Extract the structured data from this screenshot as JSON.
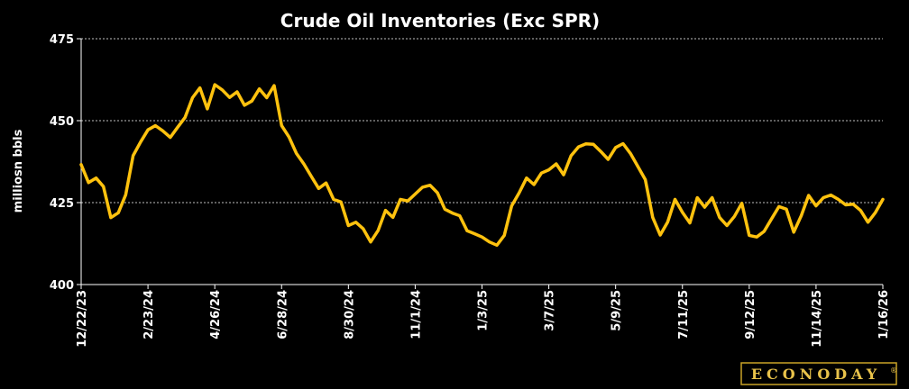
{
  "chart_data": {
    "type": "line",
    "title": "Crude Oil Inventories (Exc SPR)",
    "ylabel": "milliosn bbls",
    "xlabel": "",
    "ylim": [
      400,
      475
    ],
    "yticks": [
      400,
      425,
      450,
      475
    ],
    "grid": "horizontal dashed",
    "x_tick_labels": [
      "12/22/23",
      "2/23/24",
      "4/26/24",
      "6/28/24",
      "8/30/24",
      "11/1/24",
      "1/3/25",
      "3/7/25",
      "5/9/25",
      "7/11/25",
      "9/12/25",
      "11/14/25",
      "1/16/26"
    ],
    "line_color": "#FFC20E",
    "series": [
      {
        "name": "",
        "values": [
          436.6,
          431.1,
          432.5,
          429.9,
          420.4,
          421.9,
          427.4,
          439.3,
          443.5,
          447.2,
          448.5,
          446.9,
          444.9,
          448.0,
          451.0,
          457.0,
          460.0,
          453.6,
          461.0,
          459.4,
          457.1,
          458.8,
          454.7,
          456.0,
          459.7,
          457.0,
          460.7,
          448.5,
          445.0,
          440.0,
          436.8,
          433.0,
          429.3,
          431.0,
          426.0,
          425.2,
          418.0,
          419.0,
          417.0,
          413.0,
          416.5,
          422.6,
          420.5,
          426.0,
          425.5,
          427.6,
          429.7,
          430.3,
          428.0,
          423.0,
          421.8,
          421.0,
          416.4,
          415.5,
          414.5,
          413.0,
          412.0,
          415.0,
          424.0,
          428.0,
          432.5,
          430.5,
          434.0,
          435.0,
          436.8,
          433.5,
          439.3,
          442.0,
          442.9,
          442.8,
          440.6,
          438.2,
          441.8,
          443.0,
          440.0,
          436.0,
          432.0,
          420.5,
          415.1,
          419.0,
          426.0,
          422.0,
          418.8,
          426.5,
          423.6,
          426.5,
          420.5,
          418.0,
          420.8,
          424.8,
          415.0,
          414.5,
          416.2,
          420.0,
          423.8,
          423.0,
          416.0,
          421.0,
          427.2,
          424.0,
          426.5,
          427.3,
          426.0,
          424.3,
          424.5,
          422.6,
          419.0,
          422.0,
          426.0
        ]
      }
    ]
  },
  "branding": {
    "logo_text": "ECONODAY",
    "registered_mark": "®"
  }
}
